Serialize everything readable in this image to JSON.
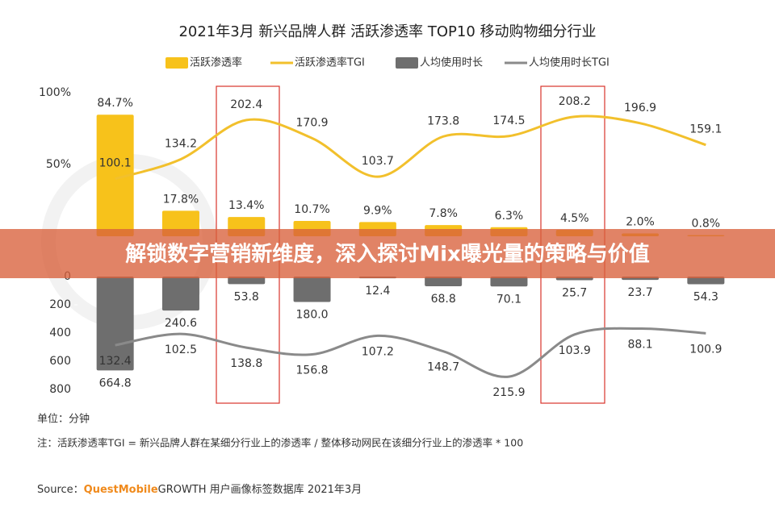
{
  "chart_data": [
    {
      "type": "bar",
      "title": "2021年3月  新兴品牌人群 活跃渗透率 TOP10 移动购物细分行业",
      "ylim": [
        0,
        100
      ],
      "yticks": [
        {
          "value": 50,
          "label": "50%"
        },
        {
          "value": 100,
          "label": "100%"
        }
      ],
      "y2lim": [
        0,
        250
      ],
      "series": [
        {
          "name": "活跃渗透率",
          "type": "bar",
          "color": "#f7c21b",
          "values": [
            84.7,
            17.8,
            13.4,
            10.7,
            9.9,
            7.8,
            6.3,
            4.5,
            2.0,
            0.8
          ],
          "value_labels": [
            "84.7%",
            "17.8%",
            "13.4%",
            "10.7%",
            "9.9%",
            "7.8%",
            "6.3%",
            "4.5%",
            "2.0%",
            "0.8%"
          ]
        },
        {
          "name": "活跃渗透率TGI",
          "type": "line",
          "axis": "y2",
          "color": "#f2c02c",
          "values": [
            100.1,
            134.2,
            202.4,
            170.9,
            103.7,
            173.8,
            174.5,
            208.2,
            196.9,
            159.1
          ]
        }
      ]
    },
    {
      "type": "bar",
      "inverted": true,
      "ylim": [
        0,
        800
      ],
      "yticks": [
        0,
        200,
        400,
        600,
        800
      ],
      "y2lim": [
        -50,
        250
      ],
      "series": [
        {
          "name": "人均使用时长",
          "type": "bar",
          "color": "#6e6e6e",
          "values": [
            664.8,
            240.6,
            53.8,
            180,
            12.4,
            68.8,
            70.1,
            25.7,
            23.7,
            54.3
          ],
          "value_labels": [
            "664.8",
            "240.6",
            "53.8",
            "180.0",
            "12.4",
            "68.8",
            "70.1",
            "25.7",
            "23.7",
            "54.3"
          ]
        },
        {
          "name": "人均使用时长TGI",
          "type": "line",
          "axis": "y2",
          "color": "#8a8a8a",
          "values": [
            132.4,
            102.5,
            138.8,
            156.8,
            107.2,
            148.7,
            215.9,
            103.9,
            88.1,
            100.9
          ]
        }
      ]
    }
  ],
  "unit_note": "单位：分钟",
  "note": "注：活跃渗透率TGI = 新兴品牌人群在某细分行业上的渗透率 / 整体移动网民在该细分行业上的渗透率 * 100",
  "source": {
    "label": "Source：",
    "brand": "QuestMobile",
    "text": "GROWTH 用户画像标签数据库 2021年3月"
  },
  "banner": "解锁数字营销新维度，深入探讨Mix曝光量的策略与价值"
}
